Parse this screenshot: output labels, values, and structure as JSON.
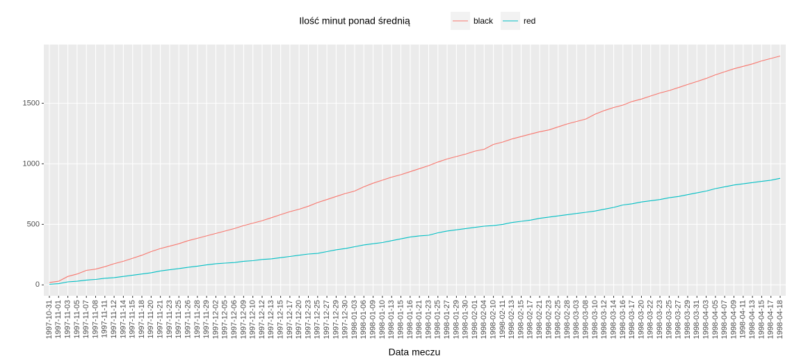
{
  "chart_data": {
    "type": "line",
    "x_label": "Data meczu",
    "legend_title": "Ilość minut ponad średnią",
    "legend_position": "top",
    "grid": true,
    "categories": [
      "1997-10-31",
      "1997-11-01",
      "1997-11-03",
      "1997-11-05",
      "1997-11-07",
      "1997-11-08",
      "1997-11-11",
      "1997-11-12",
      "1997-11-14",
      "1997-11-15",
      "1997-11-18",
      "1997-11-20",
      "1997-11-21",
      "1997-11-23",
      "1997-11-25",
      "1997-11-26",
      "1997-11-28",
      "1997-11-29",
      "1997-12-02",
      "1997-12-05",
      "1997-12-06",
      "1997-12-09",
      "1997-12-10",
      "1997-12-12",
      "1997-12-13",
      "1997-12-15",
      "1997-12-17",
      "1997-12-20",
      "1997-12-23",
      "1997-12-25",
      "1997-12-27",
      "1997-12-29",
      "1997-12-30",
      "1998-01-03",
      "1998-01-06",
      "1998-01-09",
      "1998-01-10",
      "1998-01-13",
      "1998-01-15",
      "1998-01-16",
      "1998-01-21",
      "1998-01-23",
      "1998-01-25",
      "1998-01-27",
      "1998-01-29",
      "1998-01-30",
      "1998-02-01",
      "1998-02-04",
      "1998-02-10",
      "1998-02-11",
      "1998-02-13",
      "1998-02-15",
      "1998-02-17",
      "1998-02-21",
      "1998-02-23",
      "1998-02-25",
      "1998-02-28",
      "1998-03-03",
      "1998-03-08",
      "1998-03-10",
      "1998-03-12",
      "1998-03-14",
      "1998-03-16",
      "1998-03-17",
      "1998-03-20",
      "1998-03-22",
      "1998-03-23",
      "1998-03-25",
      "1998-03-27",
      "1998-03-29",
      "1998-03-31",
      "1998-04-03",
      "1998-04-05",
      "1998-04-07",
      "1998-04-09",
      "1998-04-11",
      "1998-04-13",
      "1998-04-15",
      "1998-04-17",
      "1998-04-18"
    ],
    "series": [
      {
        "name": "black",
        "color": "#F8766D",
        "values": [
          20,
          30,
          70,
          90,
          120,
          130,
          150,
          175,
          195,
          220,
          245,
          275,
          300,
          320,
          340,
          365,
          385,
          405,
          425,
          445,
          465,
          490,
          510,
          530,
          555,
          580,
          605,
          625,
          650,
          680,
          705,
          730,
          755,
          775,
          810,
          840,
          865,
          890,
          910,
          935,
          960,
          985,
          1015,
          1040,
          1060,
          1080,
          1105,
          1120,
          1160,
          1180,
          1205,
          1225,
          1245,
          1265,
          1280,
          1305,
          1330,
          1350,
          1370,
          1410,
          1440,
          1465,
          1485,
          1515,
          1535,
          1560,
          1585,
          1605,
          1630,
          1655,
          1680,
          1705,
          1735,
          1760,
          1785,
          1805,
          1825,
          1850,
          1870,
          1890
        ]
      },
      {
        "name": "red",
        "color": "#00BFC4",
        "values": [
          5,
          10,
          25,
          30,
          40,
          45,
          55,
          60,
          70,
          80,
          90,
          100,
          115,
          125,
          135,
          145,
          155,
          165,
          175,
          180,
          185,
          195,
          200,
          210,
          215,
          225,
          235,
          245,
          255,
          260,
          275,
          290,
          300,
          315,
          330,
          340,
          350,
          365,
          380,
          395,
          405,
          410,
          430,
          445,
          455,
          465,
          475,
          485,
          490,
          500,
          515,
          525,
          535,
          550,
          560,
          570,
          580,
          590,
          600,
          610,
          625,
          640,
          660,
          670,
          685,
          695,
          705,
          720,
          730,
          745,
          760,
          775,
          795,
          810,
          825,
          835,
          845,
          855,
          865,
          880
        ]
      }
    ],
    "ylim": [
      -90,
      1985
    ],
    "yticks": [
      0,
      500,
      1000,
      1500
    ]
  }
}
